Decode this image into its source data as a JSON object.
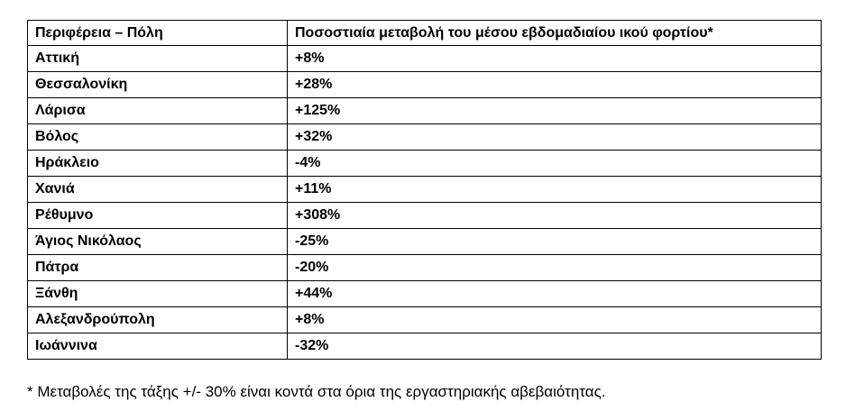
{
  "table": {
    "header": [
      "Περιφέρεια – Πόλη",
      "Ποσοστιαία μεταβολή του μέσου εβδομαδιαίου ικού φορτίου*"
    ],
    "rows": [
      [
        "Αττική",
        "+8%"
      ],
      [
        "Θεσσαλονίκη",
        "+28%"
      ],
      [
        "Λάρισα",
        "+125%"
      ],
      [
        "Βόλος",
        "+32%"
      ],
      [
        "Ηράκλειο",
        "-4%"
      ],
      [
        "Χανιά",
        "+11%"
      ],
      [
        "Ρέθυμνο",
        "+308%"
      ],
      [
        "Άγιος Νικόλαος",
        "-25%"
      ],
      [
        "Πάτρα",
        "-20%"
      ],
      [
        "Ξάνθη",
        "+44%"
      ],
      [
        "Αλεξανδρούπολη",
        "+8%"
      ],
      [
        "Ιωάννινα",
        "-32%"
      ]
    ]
  },
  "footnote": "* Μεταβολές της τάξης +/- 30% είναι κοντά στα όρια της εργαστηριακής αβεβαιότητας."
}
